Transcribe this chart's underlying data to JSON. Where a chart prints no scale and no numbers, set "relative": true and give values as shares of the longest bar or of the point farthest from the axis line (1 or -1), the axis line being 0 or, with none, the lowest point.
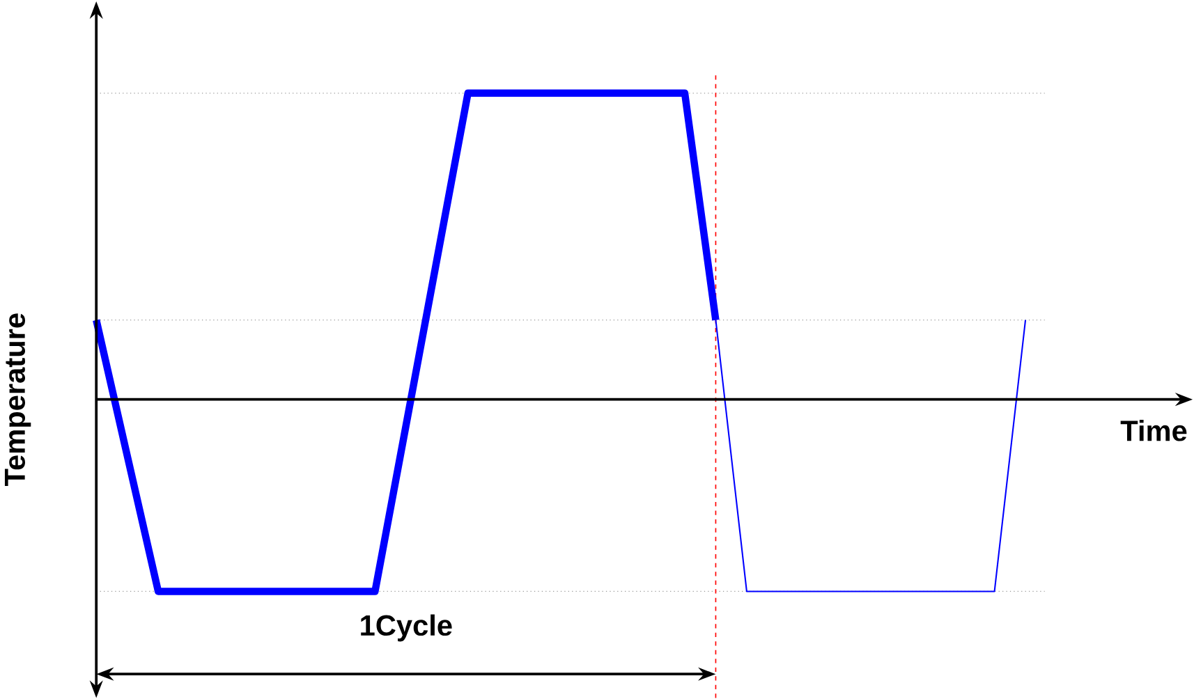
{
  "chart_data": {
    "type": "line",
    "relative": true,
    "xlabel": "Time",
    "ylabel": "Temperature",
    "marker": "none",
    "line_style": "solid",
    "categories": [
      null,
      null,
      null,
      null,
      null,
      null,
      null,
      null,
      null,
      null,
      null,
      null,
      null,
      null,
      null,
      null,
      null,
      null,
      null,
      null,
      null,
      null,
      null,
      null,
      null,
      null,
      null,
      null,
      null,
      null,
      null
    ],
    "series": [
      {
        "color": "#0000ff",
        "values": [
          0.259,
          -0.184,
          -0.627,
          -0.627,
          -0.627,
          -0.627,
          -0.627,
          -0.627,
          -0.627,
          -0.627,
          -0.085,
          0.458,
          1,
          1,
          1,
          1,
          1,
          1,
          1,
          1,
          0.259,
          null,
          null,
          null,
          null,
          null,
          null,
          null,
          null,
          null,
          null
        ]
      },
      {
        "color": "#0000ff",
        "values": [
          null,
          null,
          null,
          null,
          null,
          null,
          null,
          null,
          null,
          null,
          null,
          null,
          null,
          null,
          null,
          null,
          null,
          null,
          null,
          null,
          0.259,
          -0.627,
          -0.627,
          -0.627,
          -0.627,
          -0.627,
          -0.627,
          -0.627,
          -0.627,
          -0.627,
          0.259
        ]
      }
    ],
    "ref_lines": [
      {
        "axis": "y",
        "value": 1,
        "color": "#999999",
        "line_style": "dotted"
      },
      {
        "axis": "y",
        "value": 0.259,
        "color": "#999999",
        "line_style": "dotted"
      },
      {
        "axis": "y",
        "value": -0.627,
        "color": "#999999",
        "line_style": "dotted"
      }
    ],
    "annotations": [
      "1Cycle"
    ]
  }
}
